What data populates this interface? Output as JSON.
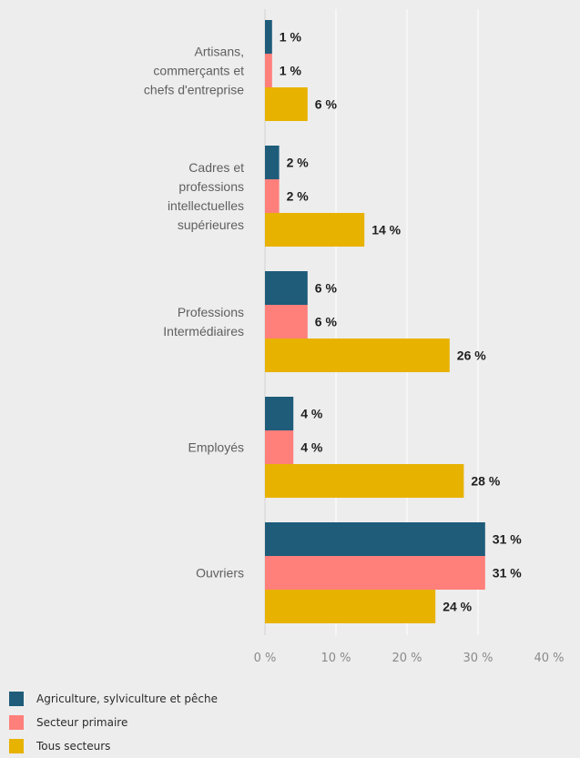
{
  "chart_data": {
    "type": "bar",
    "orientation": "horizontal",
    "categories": [
      [
        "Artisans,",
        "commerçants et",
        "chefs d'entreprise"
      ],
      [
        "Cadres et",
        "professions",
        "intellectuelles",
        "supérieures"
      ],
      [
        "Professions",
        "Intermédiaires"
      ],
      [
        "Employés"
      ],
      [
        "Ouvriers"
      ]
    ],
    "series": [
      {
        "name": "Agriculture, sylviculture et pêche",
        "color": "#1e5c7a",
        "values": [
          1,
          2,
          6,
          4,
          31
        ],
        "labels": [
          "1 %",
          "2 %",
          "6 %",
          "4 %",
          "31 %"
        ]
      },
      {
        "name": "Secteur primaire",
        "color": "#ff7f7a",
        "values": [
          1,
          2,
          6,
          4,
          31
        ],
        "labels": [
          "1 %",
          "2 %",
          "6 %",
          "4 %",
          "31 %"
        ]
      },
      {
        "name": "Tous secteurs",
        "color": "#e8b200",
        "values": [
          6,
          14,
          26,
          28,
          24
        ],
        "labels": [
          "6 %",
          "14 %",
          "26 %",
          "28 %",
          "24 %"
        ]
      }
    ],
    "xticks": [
      "0 %",
      "10 %",
      "20 %",
      "30 %",
      "40 %"
    ],
    "xlim": [
      0,
      40
    ],
    "grid": true,
    "legend_position": "bottom-left"
  }
}
